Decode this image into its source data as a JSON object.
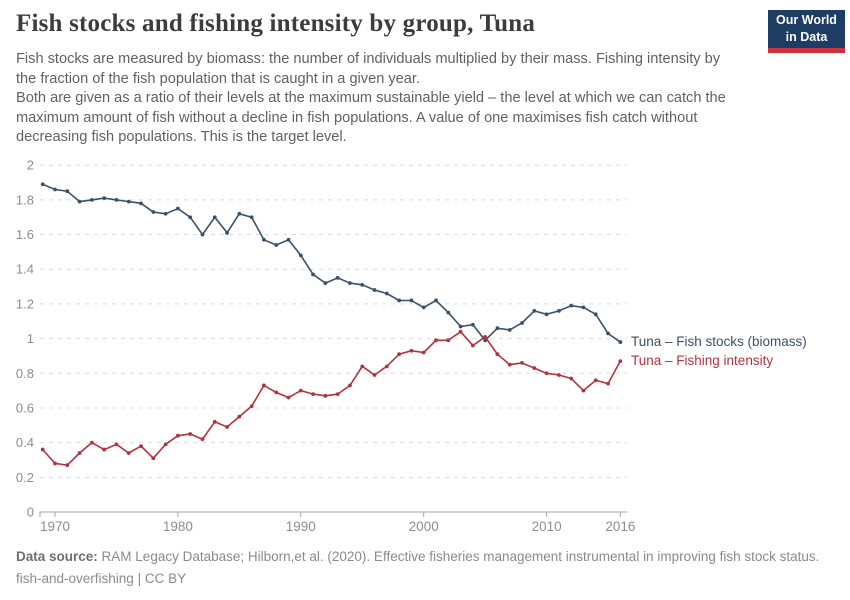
{
  "header": {
    "title": "Fish stocks and fishing intensity by group, Tuna",
    "logo": {
      "line1": "Our World",
      "line2": "in Data"
    }
  },
  "subtitle": {
    "p1": "Fish stocks are measured by biomass: the number of individuals multiplied by their mass. Fishing intensity by the fraction of the fish population that is caught in a given year.",
    "p2": "Both are given as a ratio of their levels at the maximum sustainable yield – the level at which we can catch the maximum amount of fish without a decline in fish populations. A value of one maximises fish catch without decreasing fish populations. This is the target level."
  },
  "chart_data": {
    "type": "line",
    "x": [
      1969,
      1970,
      1971,
      1972,
      1973,
      1974,
      1975,
      1976,
      1977,
      1978,
      1979,
      1980,
      1981,
      1982,
      1983,
      1984,
      1985,
      1986,
      1987,
      1988,
      1989,
      1990,
      1991,
      1992,
      1993,
      1994,
      1995,
      1996,
      1997,
      1998,
      1999,
      2000,
      2001,
      2002,
      2003,
      2004,
      2005,
      2006,
      2007,
      2008,
      2009,
      2010,
      2011,
      2012,
      2013,
      2014,
      2015,
      2016
    ],
    "series": [
      {
        "name": "Tuna – Fish stocks (biomass)",
        "color": "#3b5168",
        "values": [
          1.89,
          1.86,
          1.85,
          1.79,
          1.8,
          1.81,
          1.8,
          1.79,
          1.78,
          1.73,
          1.72,
          1.75,
          1.7,
          1.6,
          1.7,
          1.61,
          1.72,
          1.7,
          1.57,
          1.54,
          1.57,
          1.48,
          1.37,
          1.32,
          1.35,
          1.32,
          1.31,
          1.28,
          1.26,
          1.22,
          1.22,
          1.18,
          1.22,
          1.15,
          1.07,
          1.08,
          0.99,
          1.06,
          1.05,
          1.09,
          1.16,
          1.14,
          1.16,
          1.19,
          1.18,
          1.14,
          1.03,
          0.98
        ]
      },
      {
        "name": "Tuna – Fishing intensity",
        "color": "#b2333f",
        "values": [
          0.36,
          0.28,
          0.27,
          0.34,
          0.4,
          0.36,
          0.39,
          0.34,
          0.38,
          0.31,
          0.39,
          0.44,
          0.45,
          0.42,
          0.52,
          0.49,
          0.55,
          0.61,
          0.73,
          0.69,
          0.66,
          0.7,
          0.68,
          0.67,
          0.68,
          0.73,
          0.84,
          0.79,
          0.84,
          0.91,
          0.93,
          0.92,
          0.99,
          0.99,
          1.04,
          0.96,
          1.01,
          0.91,
          0.85,
          0.86,
          0.83,
          0.8,
          0.79,
          0.77,
          0.7,
          0.76,
          0.74,
          0.87
        ]
      }
    ],
    "title": "Fish stocks and fishing intensity by group, Tuna",
    "xlabel": "",
    "ylabel": "",
    "xlim": [
      1968.8,
      2016.5
    ],
    "ylim": [
      0,
      2
    ],
    "x_ticks": [
      1970,
      1980,
      1990,
      2000,
      2010,
      2016
    ],
    "y_ticks": [
      0,
      0.2,
      0.4,
      0.6,
      0.8,
      1,
      1.2,
      1.4,
      1.6,
      1.8,
      2
    ],
    "grid": "horizontal-dashed",
    "legend_position": "right-of-line-ends",
    "styles": {
      "grid_color": "#dcdcdc",
      "axis_color": "#a5a5a5",
      "tick_label_color": "#8d8d8d"
    }
  },
  "footer": {
    "source_label": "Data source:",
    "source_text": "RAM Legacy Database; Hilborn,et al. (2020). Effective fisheries management instrumental in improving fish stock status.",
    "slug": "fish-and-overfishing",
    "separator": "|",
    "license": "CC BY"
  }
}
